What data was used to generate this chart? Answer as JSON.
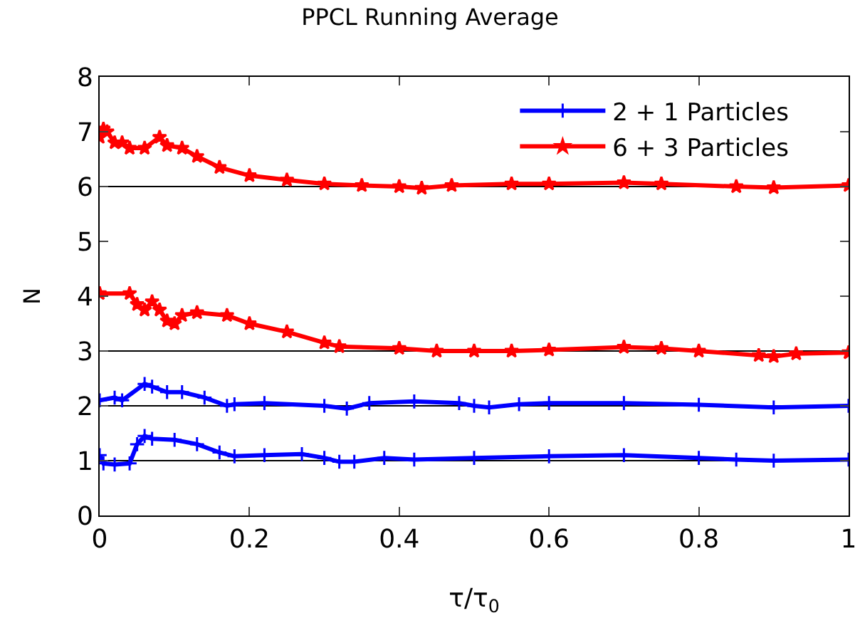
{
  "chart_data": {
    "type": "line",
    "title": "PPCL Running Average",
    "xlabel": "τ/τ$_{0}$",
    "ylabel": "N",
    "xlim": [
      0,
      1
    ],
    "xticks": [
      0,
      0.2,
      0.4,
      0.6,
      0.8,
      1
    ],
    "ylim": [
      0,
      8
    ],
    "yticks": [
      0,
      1,
      2,
      3,
      4,
      5,
      6,
      7,
      8
    ],
    "grid": false,
    "legend": "top right",
    "ref_lines": [
      {
        "axis": "y",
        "value": 1,
        "color": "#000000"
      },
      {
        "axis": "y",
        "value": 2,
        "color": "#000000"
      },
      {
        "axis": "y",
        "value": 3,
        "color": "#000000"
      },
      {
        "axis": "y",
        "value": 6,
        "color": "#000000"
      }
    ],
    "series": [
      {
        "name": "2 + 1 Particles",
        "color": "#0000ff",
        "marker": "cross",
        "x": [
          0,
          0.005,
          0.02,
          0.04,
          0.05,
          0.06,
          0.07,
          0.1,
          0.13,
          0.16,
          0.18,
          0.22,
          0.27,
          0.3,
          0.32,
          0.34,
          0.38,
          0.42,
          0.5,
          0.6,
          0.7,
          0.8,
          0.85,
          0.9,
          1.0
        ],
        "values": [
          1.1,
          0.95,
          0.93,
          0.95,
          1.3,
          1.45,
          1.4,
          1.38,
          1.3,
          1.15,
          1.08,
          1.1,
          1.12,
          1.05,
          0.98,
          0.98,
          1.05,
          1.02,
          1.05,
          1.08,
          1.1,
          1.05,
          1.02,
          1.0,
          1.02
        ]
      },
      {
        "color": "#0000ff",
        "marker": "cross",
        "x": [
          0,
          0.02,
          0.03,
          0.06,
          0.07,
          0.09,
          0.11,
          0.14,
          0.17,
          0.18,
          0.22,
          0.3,
          0.33,
          0.36,
          0.42,
          0.48,
          0.5,
          0.52,
          0.56,
          0.6,
          0.7,
          0.8,
          0.9,
          1.0
        ],
        "values": [
          2.1,
          2.15,
          2.1,
          2.4,
          2.35,
          2.25,
          2.25,
          2.15,
          2.0,
          2.03,
          2.05,
          2.0,
          1.95,
          2.05,
          2.08,
          2.05,
          2.0,
          1.97,
          2.03,
          2.05,
          2.05,
          2.02,
          1.97,
          2.0
        ]
      },
      {
        "name": "6 + 3 Particles",
        "color": "#ff0000",
        "marker": "star",
        "x": [
          0,
          0.04,
          0.05,
          0.06,
          0.07,
          0.08,
          0.09,
          0.1,
          0.11,
          0.13,
          0.17,
          0.2,
          0.25,
          0.3,
          0.32,
          0.4,
          0.45,
          0.5,
          0.55,
          0.6,
          0.7,
          0.75,
          0.8,
          0.88,
          0.9,
          0.93,
          1.0
        ],
        "values": [
          4.05,
          4.05,
          3.85,
          3.75,
          3.9,
          3.75,
          3.55,
          3.5,
          3.65,
          3.7,
          3.65,
          3.5,
          3.35,
          3.15,
          3.08,
          3.05,
          3.0,
          3.0,
          3.0,
          3.02,
          3.07,
          3.05,
          3.0,
          2.92,
          2.9,
          2.95,
          2.97
        ]
      },
      {
        "color": "#ff0000",
        "marker": "star",
        "x": [
          0,
          0.005,
          0.01,
          0.02,
          0.03,
          0.04,
          0.06,
          0.08,
          0.09,
          0.11,
          0.13,
          0.16,
          0.2,
          0.25,
          0.3,
          0.35,
          0.4,
          0.43,
          0.47,
          0.55,
          0.6,
          0.7,
          0.75,
          0.85,
          0.9,
          1.0
        ],
        "values": [
          6.9,
          7.05,
          7.0,
          6.8,
          6.8,
          6.7,
          6.7,
          6.9,
          6.75,
          6.7,
          6.55,
          6.35,
          6.2,
          6.12,
          6.05,
          6.02,
          6.0,
          5.97,
          6.02,
          6.05,
          6.05,
          6.07,
          6.05,
          6.0,
          5.98,
          6.02
        ]
      }
    ]
  }
}
